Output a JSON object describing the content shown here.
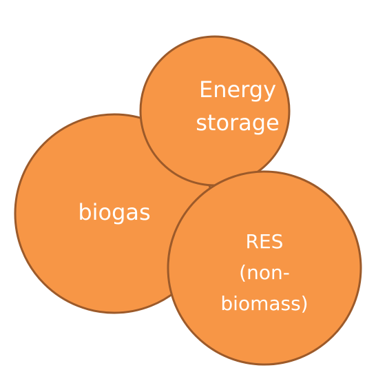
{
  "nodes": [
    {
      "label": [
        "biogas"
      ]
    },
    {
      "label": [
        "Energy",
        "storage"
      ]
    },
    {
      "label": [
        "RES",
        "(non-",
        "biomass)"
      ]
    }
  ]
}
